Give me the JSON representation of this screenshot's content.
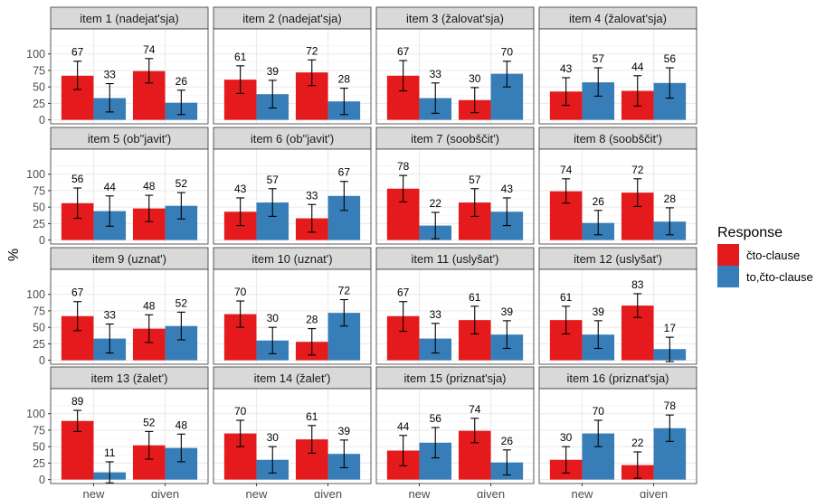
{
  "chart_data": {
    "type": "bar",
    "ylabel": "%",
    "categories": [
      "new",
      "given"
    ],
    "series": [
      {
        "name": "čto-clause",
        "color": "#E41A1C"
      },
      {
        "name": "to,čto-clause",
        "color": "#377EB8"
      }
    ],
    "legend": {
      "title": "Response",
      "position": "right"
    },
    "y_ticks": [
      0,
      25,
      50,
      75,
      100
    ],
    "ylim": [
      -6,
      138
    ],
    "grid": true,
    "panels": [
      {
        "title": "item 1 (nadejat'sja)",
        "values": [
          [
            67,
            33
          ],
          [
            74,
            26
          ]
        ],
        "err": [
          [
            [
              46,
              89
            ],
            [
              12,
              55
            ]
          ],
          [
            [
              56,
              93
            ],
            [
              8,
              45
            ]
          ]
        ]
      },
      {
        "title": "item 2 (nadejat'sja)",
        "values": [
          [
            61,
            39
          ],
          [
            72,
            28
          ]
        ],
        "err": [
          [
            [
              40,
              82
            ],
            [
              18,
              60
            ]
          ],
          [
            [
              52,
              91
            ],
            [
              8,
              48
            ]
          ]
        ]
      },
      {
        "title": "item 3 (žalovat'sja)",
        "values": [
          [
            67,
            33
          ],
          [
            30,
            70
          ]
        ],
        "err": [
          [
            [
              44,
              90
            ],
            [
              10,
              56
            ]
          ],
          [
            [
              11,
              49
            ],
            [
              50,
              89
            ]
          ]
        ]
      },
      {
        "title": "item 4 (žalovat'sja)",
        "values": [
          [
            43,
            57
          ],
          [
            44,
            56
          ]
        ],
        "err": [
          [
            [
              22,
              64
            ],
            [
              36,
              79
            ]
          ],
          [
            [
              21,
              67
            ],
            [
              33,
              79
            ]
          ]
        ]
      },
      {
        "title": "item 5 (ob\"javit')",
        "values": [
          [
            56,
            44
          ],
          [
            48,
            52
          ]
        ],
        "err": [
          [
            [
              33,
              79
            ],
            [
              21,
              67
            ]
          ],
          [
            [
              28,
              68
            ],
            [
              32,
              72
            ]
          ]
        ]
      },
      {
        "title": "item 6 (ob\"javit')",
        "values": [
          [
            43,
            57
          ],
          [
            33,
            67
          ]
        ],
        "err": [
          [
            [
              22,
              64
            ],
            [
              36,
              78
            ]
          ],
          [
            [
              12,
              54
            ],
            [
              45,
              89
            ]
          ]
        ]
      },
      {
        "title": "item 7 (soobščit')",
        "values": [
          [
            78,
            22
          ],
          [
            57,
            43
          ]
        ],
        "err": [
          [
            [
              58,
              98
            ],
            [
              2,
              42
            ]
          ],
          [
            [
              36,
              78
            ],
            [
              22,
              64
            ]
          ]
        ]
      },
      {
        "title": "item 8 (soobščit')",
        "values": [
          [
            74,
            26
          ],
          [
            72,
            28
          ]
        ],
        "err": [
          [
            [
              56,
              93
            ],
            [
              8,
              45
            ]
          ],
          [
            [
              51,
              93
            ],
            [
              8,
              49
            ]
          ]
        ]
      },
      {
        "title": "item 9 (uznat')",
        "values": [
          [
            67,
            33
          ],
          [
            48,
            52
          ]
        ],
        "err": [
          [
            [
              45,
              89
            ],
            [
              11,
              55
            ]
          ],
          [
            [
              27,
              69
            ],
            [
              31,
              73
            ]
          ]
        ]
      },
      {
        "title": "item 10 (uznat')",
        "values": [
          [
            70,
            30
          ],
          [
            28,
            72
          ]
        ],
        "err": [
          [
            [
              50,
              90
            ],
            [
              10,
              50
            ]
          ],
          [
            [
              8,
              48
            ],
            [
              52,
              92
            ]
          ]
        ]
      },
      {
        "title": "item 11 (uslyšat')",
        "values": [
          [
            67,
            33
          ],
          [
            61,
            39
          ]
        ],
        "err": [
          [
            [
              44,
              89
            ],
            [
              11,
              56
            ]
          ],
          [
            [
              40,
              82
            ],
            [
              18,
              60
            ]
          ]
        ]
      },
      {
        "title": "item 12 (uslyšat')",
        "values": [
          [
            61,
            39
          ],
          [
            83,
            17
          ]
        ],
        "err": [
          [
            [
              40,
              82
            ],
            [
              18,
              60
            ]
          ],
          [
            [
              65,
              101
            ],
            [
              -2,
              35
            ]
          ]
        ]
      },
      {
        "title": "item 13 (žalet')",
        "values": [
          [
            89,
            11
          ],
          [
            52,
            48
          ]
        ],
        "err": [
          [
            [
              73,
              105
            ],
            [
              -5,
              27
            ]
          ],
          [
            [
              31,
              73
            ],
            [
              27,
              69
            ]
          ]
        ]
      },
      {
        "title": "item 14 (žalet')",
        "values": [
          [
            70,
            30
          ],
          [
            61,
            39
          ]
        ],
        "err": [
          [
            [
              50,
              90
            ],
            [
              10,
              50
            ]
          ],
          [
            [
              40,
              82
            ],
            [
              18,
              60
            ]
          ]
        ]
      },
      {
        "title": "item 15 (priznat'sja)",
        "values": [
          [
            44,
            56
          ],
          [
            74,
            26
          ]
        ],
        "err": [
          [
            [
              21,
              67
            ],
            [
              33,
              79
            ]
          ],
          [
            [
              56,
              93
            ],
            [
              7,
              45
            ]
          ]
        ]
      },
      {
        "title": "item 16 (priznat'sja)",
        "values": [
          [
            30,
            70
          ],
          [
            22,
            78
          ]
        ],
        "err": [
          [
            [
              10,
              50
            ],
            [
              50,
              90
            ]
          ],
          [
            [
              2,
              42
            ],
            [
              58,
              98
            ]
          ]
        ]
      }
    ]
  }
}
